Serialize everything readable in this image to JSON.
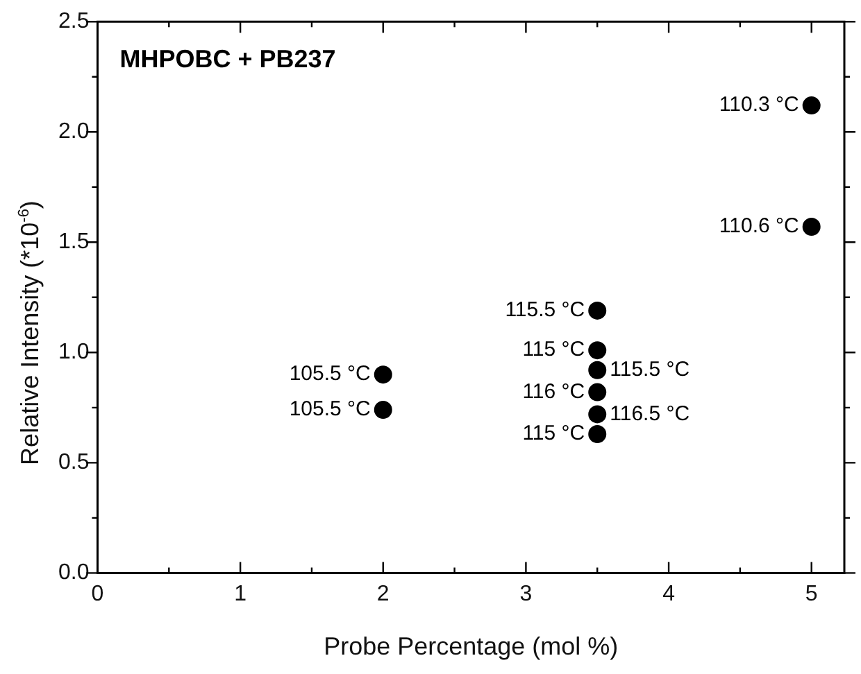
{
  "chart_data": {
    "type": "scatter",
    "title": "MHPOBC + PB237",
    "xlabel": "Probe Percentage (mol %)",
    "ylabel": "Relative Intensity (*10$^{-6}$)",
    "x": [
      2,
      2,
      3.5,
      3.5,
      3.5,
      3.5,
      3.5,
      3.5,
      5,
      5
    ],
    "values": [
      0.9,
      0.74,
      1.19,
      1.01,
      0.92,
      0.82,
      0.72,
      0.63,
      2.12,
      1.57
    ],
    "color": "#000000",
    "marker": "circle",
    "grid": false,
    "legend": false,
    "xlim": [
      0,
      5.23
    ],
    "ylim": [
      0,
      2.5
    ],
    "xticks": [
      0,
      {
        "value": 0.5,
        "label": null
      },
      1,
      {
        "value": 1.5,
        "label": null
      },
      2,
      {
        "value": 2.5,
        "label": null
      },
      3,
      {
        "value": 3.5,
        "label": null
      },
      4,
      {
        "value": 4.5,
        "label": null
      },
      5
    ],
    "yticks": [
      {
        "value": 0,
        "label": "0.0"
      },
      {
        "value": 0.25,
        "label": null
      },
      {
        "value": 0.5,
        "label": "0.5"
      },
      {
        "value": 0.75,
        "label": null
      },
      {
        "value": 1,
        "label": "1.0"
      },
      {
        "value": 1.25,
        "label": null
      },
      {
        "value": 1.5,
        "label": "1.5"
      },
      {
        "value": 1.75,
        "label": null
      },
      {
        "value": 2,
        "label": "2.0"
      },
      {
        "value": 2.25,
        "label": null
      },
      {
        "value": 2.5,
        "label": "2.5"
      }
    ],
    "annotations": [
      {
        "text": "105.5 °C",
        "x": 2,
        "y": 0.9
      },
      {
        "text": "105.5 °C",
        "x": 2,
        "y": 0.74
      },
      {
        "text": "115.5 °C",
        "x": 3.5,
        "y": 1.19
      },
      {
        "text": "115 °C",
        "x": 3.5,
        "y": 1.01
      },
      {
        "text": "115.5 °C",
        "x": 3.5,
        "y": 0.92
      },
      {
        "text": "116 °C",
        "x": 3.5,
        "y": 0.82
      },
      {
        "text": "116.5 °C",
        "x": 3.5,
        "y": 0.72
      },
      {
        "text": "115 °C",
        "x": 3.5,
        "y": 0.63
      },
      {
        "text": "110.3 °C",
        "x": 5,
        "y": 2.12
      },
      {
        "text": "110.6 °C",
        "x": 5,
        "y": 1.57
      }
    ]
  }
}
